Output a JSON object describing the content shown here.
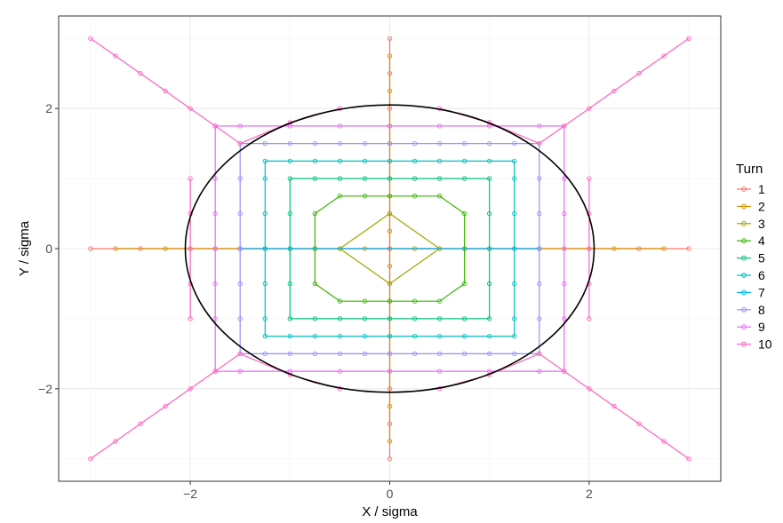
{
  "chart_data": {
    "type": "line",
    "title": "",
    "xlabel": "X / sigma",
    "ylabel": "Y / sigma",
    "xlim": [
      -3.32,
      3.32
    ],
    "ylim": [
      -3.32,
      3.32
    ],
    "x_ticks": [
      -2,
      0,
      2
    ],
    "y_ticks": [
      -2,
      0,
      2
    ],
    "x_tick_labels": [
      "−2",
      "0",
      "2"
    ],
    "y_tick_labels": [
      "−2",
      "0",
      "2"
    ],
    "grid": true,
    "legend": {
      "title": "Turn",
      "placement": "right"
    },
    "ellipse": {
      "center": [
        0,
        0
      ],
      "rx": 2.05,
      "ry": 2.05,
      "color": "#000000"
    },
    "series": [
      {
        "name": "1",
        "color": "#F8766D",
        "lines": [
          {
            "x": [
              -3.0,
              -2.5,
              -2.0,
              -1.5,
              -1.0,
              -0.5,
              0.0,
              0.5,
              1.0,
              1.5,
              2.0,
              2.5,
              3.0
            ],
            "y": [
              0,
              0,
              0,
              0,
              0,
              0,
              0,
              0,
              0,
              0,
              0,
              0,
              0
            ]
          },
          {
            "x": [
              0,
              0,
              0,
              0,
              0,
              0,
              0,
              0,
              0,
              0,
              0,
              0,
              0
            ],
            "y": [
              -3.0,
              -2.5,
              -2.0,
              -1.5,
              -1.0,
              -0.5,
              0.0,
              0.5,
              1.0,
              1.5,
              2.0,
              2.5,
              3.0
            ]
          }
        ]
      },
      {
        "name": "2",
        "color": "#D89000",
        "lines": [
          {
            "x": [
              -2.75,
              -2.25,
              -1.75,
              -1.25,
              -0.75,
              -0.25,
              0.25,
              0.75,
              1.25,
              1.75,
              2.25,
              2.75
            ],
            "y": [
              0,
              0,
              0,
              0,
              0,
              0,
              0,
              0,
              0,
              0,
              0,
              0
            ]
          },
          {
            "x": [
              0,
              0,
              0,
              0,
              0,
              0,
              0,
              0,
              0,
              0,
              0,
              0
            ],
            "y": [
              -2.75,
              -2.25,
              -1.75,
              -1.25,
              -0.75,
              -0.25,
              0.25,
              0.75,
              1.25,
              1.75,
              2.25,
              2.75
            ]
          }
        ]
      },
      {
        "name": "3",
        "color": "#A3A500",
        "lines": [
          {
            "x": [
              -0.5,
              0,
              0.5,
              0,
              -0.5
            ],
            "y": [
              0,
              0.5,
              0,
              -0.5,
              0
            ]
          }
        ]
      },
      {
        "name": "4",
        "color": "#39B600",
        "lines": [
          {
            "x": [
              -0.75,
              -0.75,
              -0.5,
              -0.25,
              0,
              0.25,
              0.5,
              0.75,
              0.75,
              0.75,
              0.5,
              0.25,
              0,
              -0.25,
              -0.5,
              -0.75,
              -0.75
            ],
            "y": [
              0,
              0.5,
              0.75,
              0.75,
              0.75,
              0.75,
              0.75,
              0.5,
              0,
              -0.5,
              -0.75,
              -0.75,
              -0.75,
              -0.75,
              -0.75,
              -0.5,
              0
            ]
          }
        ]
      },
      {
        "name": "5",
        "color": "#00BF7D",
        "lines": [
          {
            "x": [
              -1.0,
              -1.0,
              -1.0,
              -0.75,
              -0.5,
              -0.25,
              0,
              0.25,
              0.5,
              0.75,
              1.0,
              1.0,
              1.0,
              1.0,
              1.0,
              0.75,
              0.5,
              0.25,
              0,
              -0.25,
              -0.5,
              -0.75,
              -1.0,
              -1.0,
              -1.0
            ],
            "y": [
              0,
              0.5,
              1.0,
              1.0,
              1.0,
              1.0,
              1.0,
              1.0,
              1.0,
              1.0,
              1.0,
              0.5,
              0,
              -0.5,
              -1.0,
              -1.0,
              -1.0,
              -1.0,
              -1.0,
              -1.0,
              -1.0,
              -1.0,
              -1.0,
              -0.5,
              0
            ]
          }
        ]
      },
      {
        "name": "6",
        "color": "#00BFC4",
        "lines": [
          {
            "x": [
              -1.25,
              -1.25,
              -1.25,
              -1.25,
              -1.0,
              -0.75,
              -0.5,
              -0.25,
              0,
              0.25,
              0.5,
              0.75,
              1.0,
              1.25,
              1.25,
              1.25,
              1.25,
              1.25,
              1.25,
              1.25,
              1.0,
              0.75,
              0.5,
              0.25,
              0,
              -0.25,
              -0.5,
              -0.75,
              -1.0,
              -1.25,
              -1.25,
              -1.25,
              -1.25
            ],
            "y": [
              0,
              0.5,
              1.0,
              1.25,
              1.25,
              1.25,
              1.25,
              1.25,
              1.25,
              1.25,
              1.25,
              1.25,
              1.25,
              1.25,
              1.0,
              0.5,
              0,
              -0.5,
              -1.0,
              -1.25,
              -1.25,
              -1.25,
              -1.25,
              -1.25,
              -1.25,
              -1.25,
              -1.25,
              -1.25,
              -1.25,
              -1.25,
              -1.0,
              -0.5,
              0
            ]
          }
        ]
      },
      {
        "name": "7",
        "color": "#00B0F6",
        "lines": [
          {
            "x": [
              -1.5,
              1.5
            ],
            "y": [
              0,
              0
            ]
          }
        ]
      },
      {
        "name": "8",
        "color": "#9590FF",
        "lines": [
          {
            "x": [
              -1.5,
              -1.5,
              -1.5,
              -1.5,
              -1.25,
              -1.0,
              -0.75,
              -0.5,
              -0.25,
              0,
              0.25,
              0.5,
              0.75,
              1.0,
              1.25,
              1.5,
              1.5,
              1.5,
              1.5,
              1.5,
              1.5,
              1.5,
              1.25,
              1.0,
              0.75,
              0.5,
              0.25,
              0,
              -0.25,
              -0.5,
              -0.75,
              -1.0,
              -1.25,
              -1.5,
              -1.5,
              -1.5,
              -1.5
            ],
            "y": [
              0,
              0.5,
              1.0,
              1.5,
              1.5,
              1.5,
              1.5,
              1.5,
              1.5,
              1.5,
              1.5,
              1.5,
              1.5,
              1.5,
              1.5,
              1.5,
              1.0,
              0.5,
              0,
              -0.5,
              -1.0,
              -1.5,
              -1.5,
              -1.5,
              -1.5,
              -1.5,
              -1.5,
              -1.5,
              -1.5,
              -1.5,
              -1.5,
              -1.5,
              -1.5,
              -1.5,
              -1.0,
              -0.5,
              0
            ]
          }
        ]
      },
      {
        "name": "9",
        "color": "#E76BF3",
        "lines": [
          {
            "x": [
              -1.75,
              -1.75,
              -1.75,
              -1.75,
              -1.5,
              -1.0,
              -0.5,
              0,
              0.5,
              1.0,
              1.5,
              1.75,
              1.75,
              1.75,
              1.75,
              1.75,
              1.75,
              1.75,
              1.5,
              1.0,
              0.5,
              0,
              -0.5,
              -1.0,
              -1.5,
              -1.75,
              -1.75,
              -1.75,
              -1.75
            ],
            "y": [
              0,
              0.5,
              1.0,
              1.75,
              1.75,
              1.75,
              1.75,
              1.75,
              1.75,
              1.75,
              1.75,
              1.75,
              1.0,
              0.5,
              0,
              -0.5,
              -1.0,
              -1.75,
              -1.75,
              -1.75,
              -1.75,
              -1.75,
              -1.75,
              -1.75,
              -1.75,
              -1.75,
              -1.0,
              -0.5,
              0
            ]
          }
        ]
      },
      {
        "name": "10",
        "color": "#FF62BC",
        "lines": [
          {
            "x": [
              -3.0,
              -2.75,
              -2.5,
              -2.25,
              -2.0,
              -1.75,
              -1.5,
              -1.0,
              -0.5
            ],
            "y": [
              3.0,
              2.75,
              2.5,
              2.25,
              2.0,
              1.75,
              1.5,
              1.8,
              2.0
            ]
          },
          {
            "x": [
              3.0,
              2.75,
              2.5,
              2.25,
              2.0,
              1.75,
              1.5,
              1.0,
              0.5
            ],
            "y": [
              3.0,
              2.75,
              2.5,
              2.25,
              2.0,
              1.75,
              1.5,
              1.8,
              2.0
            ]
          },
          {
            "x": [
              -3.0,
              -2.75,
              -2.5,
              -2.25,
              -2.0,
              -1.75,
              -1.5,
              -1.0,
              -0.5
            ],
            "y": [
              -3.0,
              -2.75,
              -2.5,
              -2.25,
              -2.0,
              -1.75,
              -1.5,
              -1.8,
              -2.0
            ]
          },
          {
            "x": [
              3.0,
              2.75,
              2.5,
              2.25,
              2.0,
              1.75,
              1.5,
              1.0,
              0.5
            ],
            "y": [
              -3.0,
              -2.75,
              -2.5,
              -2.25,
              -2.0,
              -1.75,
              -1.5,
              -1.8,
              -2.0
            ]
          },
          {
            "x": [
              -2.0,
              -2.0,
              -2.0,
              -2.0,
              -2.0
            ],
            "y": [
              1.0,
              0.5,
              0,
              -0.5,
              -1.0
            ]
          },
          {
            "x": [
              2.0,
              2.0,
              2.0,
              2.0,
              2.0
            ],
            "y": [
              1.0,
              0.5,
              0,
              -0.5,
              -1.0
            ]
          }
        ]
      }
    ]
  }
}
